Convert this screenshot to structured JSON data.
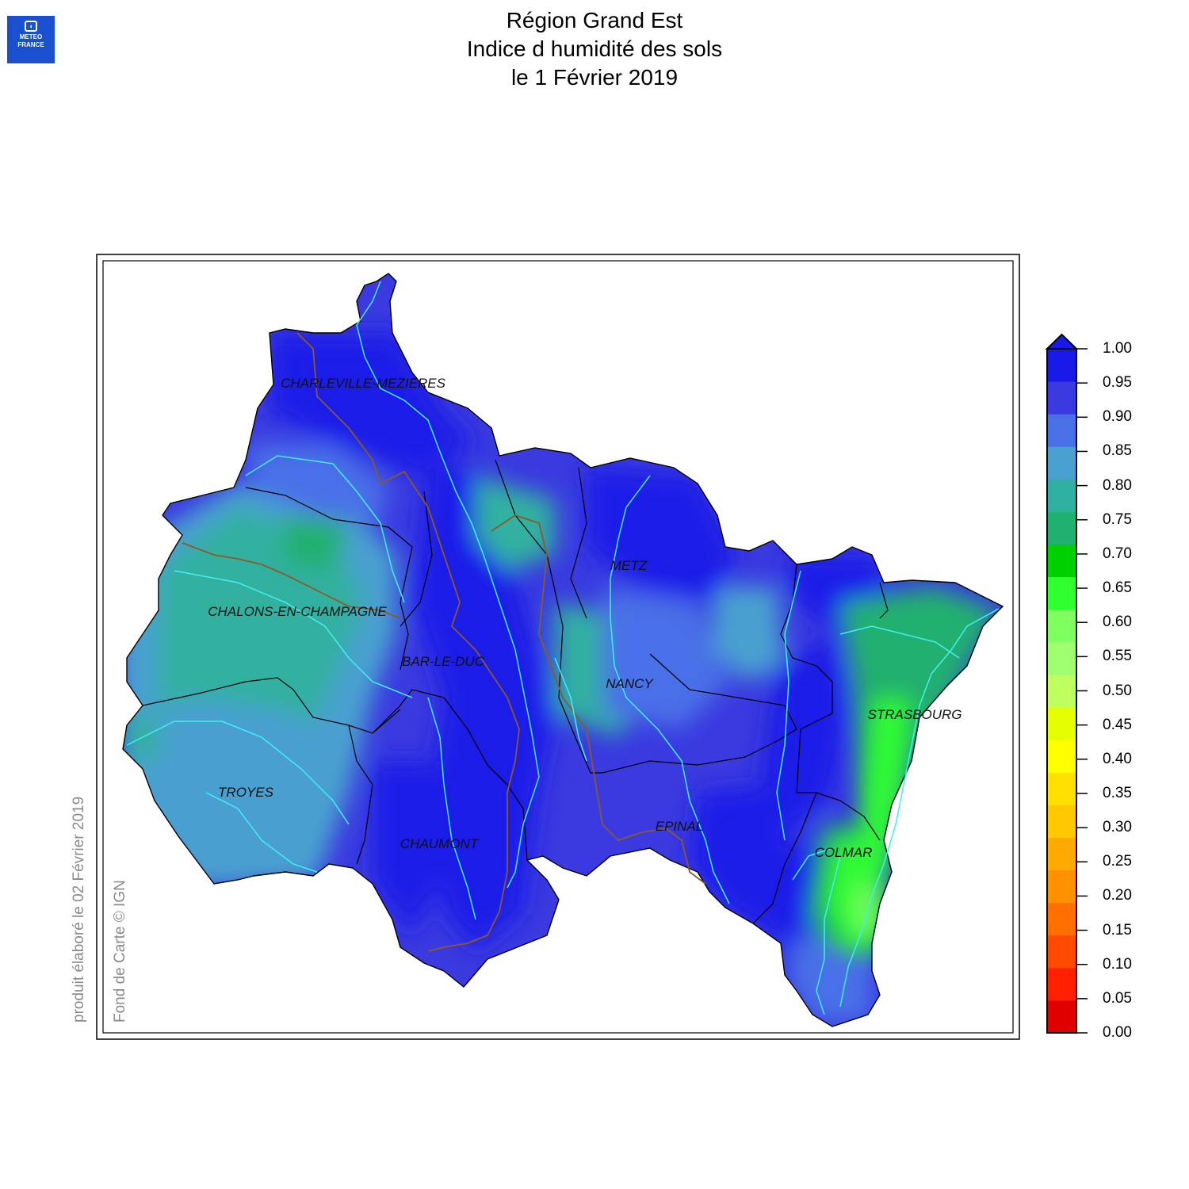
{
  "logo": {
    "line1": "METEO",
    "line2": "FRANCE"
  },
  "title": {
    "line1": "Région Grand Est",
    "line2": "Indice d humidité des sols",
    "line3": "le 1 Février 2019"
  },
  "cities": [
    {
      "name": "CHARLEVILLE-MEZIERES"
    },
    {
      "name": "METZ"
    },
    {
      "name": "CHALONS-EN-CHAMPAGNE"
    },
    {
      "name": "BAR-LE-DUC"
    },
    {
      "name": "NANCY"
    },
    {
      "name": "STRASBOURG"
    },
    {
      "name": "TROYES"
    },
    {
      "name": "EPINAL"
    },
    {
      "name": "CHAUMONT"
    },
    {
      "name": "COLMAR"
    }
  ],
  "side_texts": {
    "produit": "produit élaboré le 02 Février 2019",
    "fond": "Fond de Carte © IGN"
  },
  "color_scale": {
    "labels": [
      "0.00",
      "0.05",
      "0.10",
      "0.15",
      "0.20",
      "0.25",
      "0.30",
      "0.35",
      "0.40",
      "0.45",
      "0.50",
      "0.55",
      "0.60",
      "0.65",
      "0.70",
      "0.75",
      "0.80",
      "0.85",
      "0.90",
      "0.95",
      "1.00"
    ],
    "colors": [
      "#e00000",
      "#ff2000",
      "#ff4a00",
      "#ff7000",
      "#ff9000",
      "#ffaa00",
      "#ffc800",
      "#ffe000",
      "#ffff00",
      "#e6ff00",
      "#c0ff60",
      "#a0ff70",
      "#80ff60",
      "#30ff30",
      "#00d000",
      "#20b070",
      "#30b0a0",
      "#4aa0d0",
      "#4a70e8",
      "#3a3ae0",
      "#1a1ae8"
    ]
  },
  "map_colors": {
    "very_wet": "#1a1ae8",
    "wet": "#3a3ae0",
    "moist": "#4a70e8",
    "medium": "#4aa0d0",
    "teal": "#30b0a0",
    "green_teal": "#20b070",
    "green": "#30ff30",
    "light_green": "#80ff60",
    "rivers": "#40f0f0",
    "boundaries": "#000000",
    "region_lines": "#8b5a2b"
  }
}
